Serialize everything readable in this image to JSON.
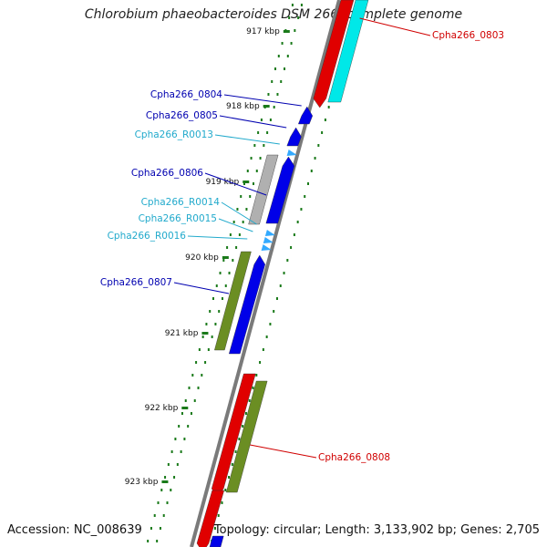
{
  "title": "Chlorobium phaeobacteroides DSM 266, complete genome",
  "footer": {
    "accession": "Accession: NC_008639",
    "summary": "Topology: circular; Length: 3,133,902 bp; Genes: 2,705"
  },
  "colors": {
    "backbone": "#7a7a7a",
    "tick_mark": "#1a7a1a",
    "red_gene": "#e00000",
    "blue_gene": "#0000e8",
    "cyan_gene": "#00e8e8",
    "light_blue_gene": "#33aaff",
    "olive_gene": "#6b8e23",
    "gray_gene": "#b0b0b0",
    "label_red": "#d00000",
    "label_blue": "#0000b0",
    "label_cyan": "#22aacc"
  },
  "ticks": [
    "917 kbp",
    "918 kbp",
    "919 kbp",
    "920 kbp",
    "921 kbp",
    "922 kbp",
    "923 kbp"
  ],
  "gene_labels": [
    {
      "id": "Cpha266_0803",
      "color": "red"
    },
    {
      "id": "Cpha266_0804",
      "color": "blue"
    },
    {
      "id": "Cpha266_0805",
      "color": "blue"
    },
    {
      "id": "Cpha266_R0013",
      "color": "cyan"
    },
    {
      "id": "Cpha266_0806",
      "color": "blue"
    },
    {
      "id": "Cpha266_R0014",
      "color": "cyan"
    },
    {
      "id": "Cpha266_R0015",
      "color": "cyan"
    },
    {
      "id": "Cpha266_R0016",
      "color": "cyan"
    },
    {
      "id": "Cpha266_0807",
      "color": "blue"
    },
    {
      "id": "Cpha266_0808",
      "color": "red"
    }
  ]
}
